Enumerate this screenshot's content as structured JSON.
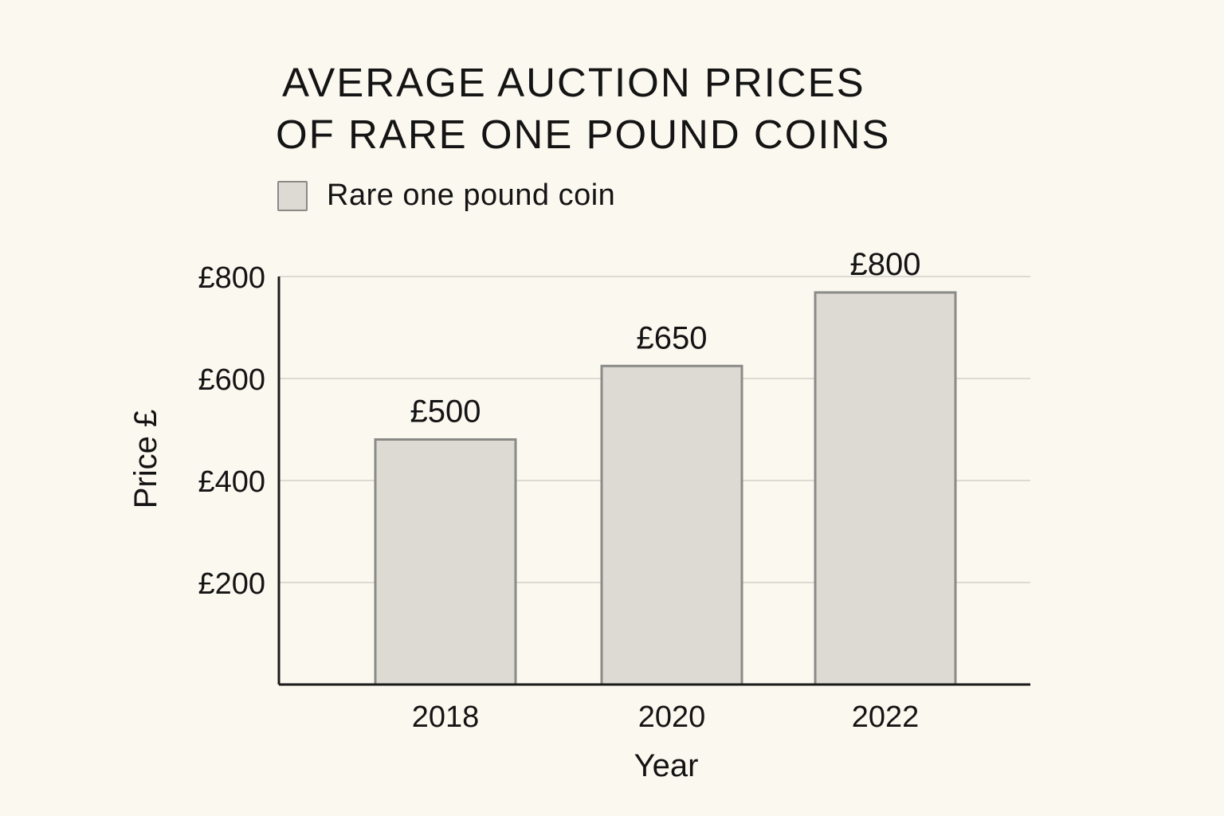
{
  "chart_data": {
    "type": "bar",
    "title_lines": [
      "AVERAGE AUCTION PRICES",
      "OF RARE ONE POUND COINS"
    ],
    "legend": [
      "Rare one pound coin"
    ],
    "categories": [
      "2018",
      "2020",
      "2022"
    ],
    "series": [
      {
        "name": "Rare one pound coin",
        "values": [
          500,
          650,
          800
        ],
        "value_labels": [
          "£500",
          "£650",
          "£800"
        ]
      }
    ],
    "xlabel": "Year",
    "ylabel": "Price £",
    "ylim": [
      0,
      800
    ],
    "yticks": [
      200,
      400,
      600,
      800
    ],
    "ytick_labels": [
      "£200",
      "£400",
      "£600",
      "£800"
    ],
    "grid": true,
    "legend_position": "top-left"
  },
  "colors": {
    "bar_fill": "#dcdad3",
    "bar_stroke": "#8a8a87",
    "grid": "#dcdad3",
    "axis": "#1a1a1a",
    "background": "#fbf8ef"
  }
}
